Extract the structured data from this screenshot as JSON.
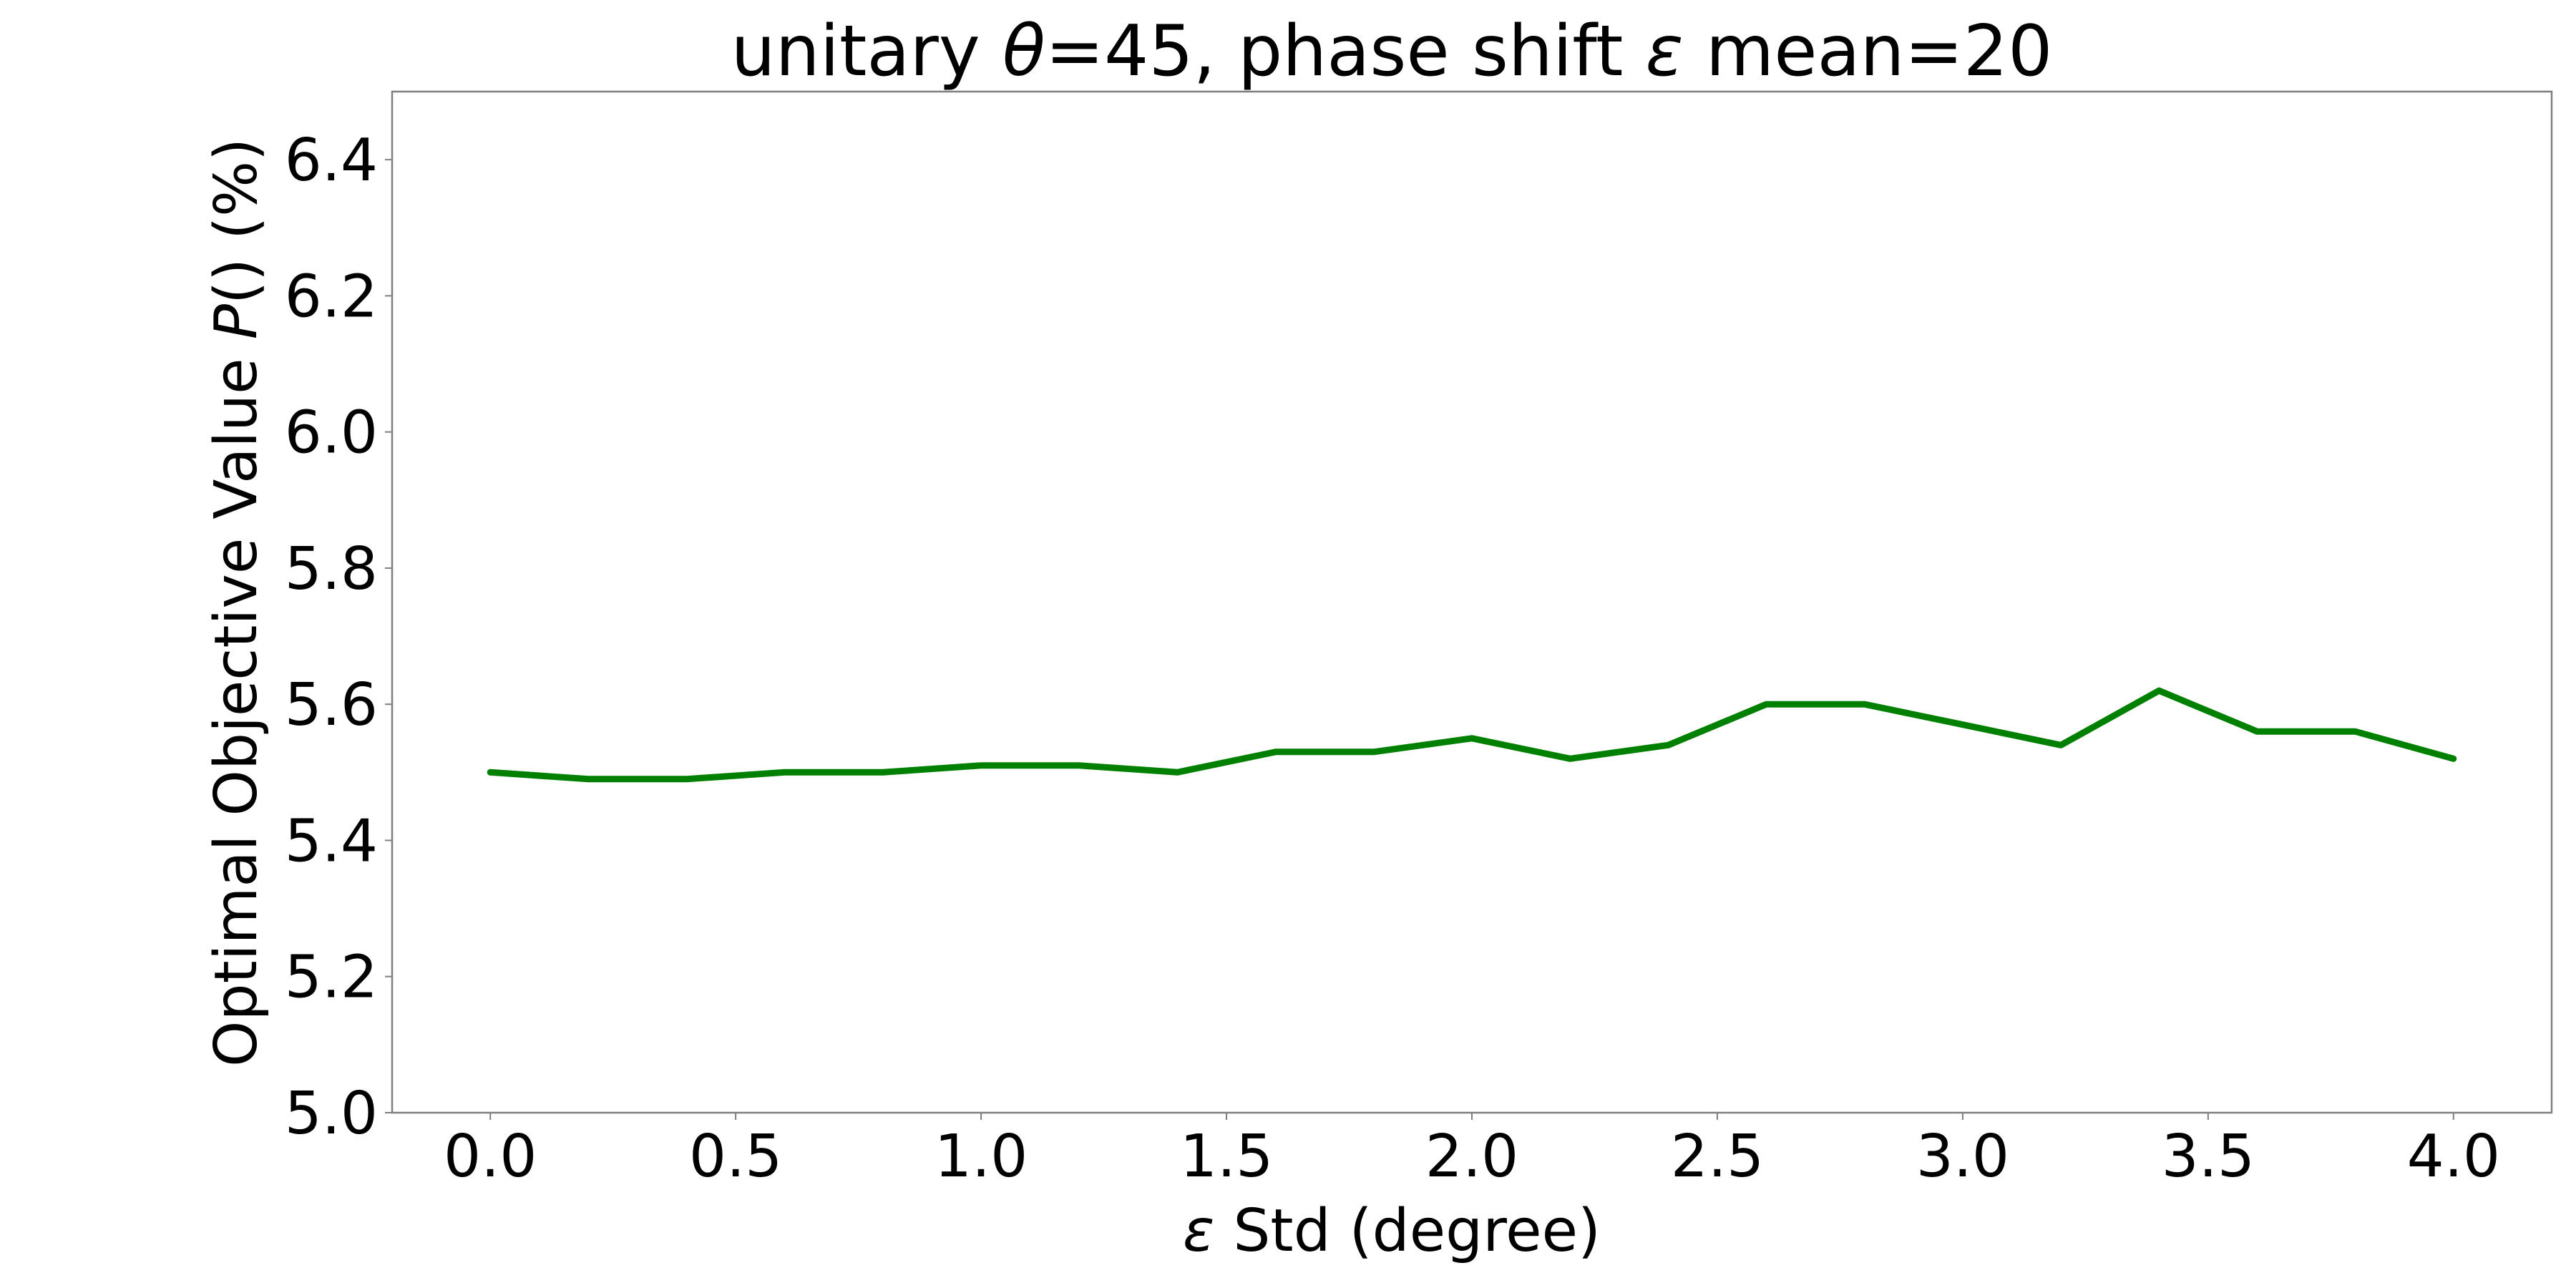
{
  "chart_data": {
    "type": "line",
    "title": "unitary θ=45, phase shift ε mean=20",
    "title_parts": {
      "prefix": "unitary ",
      "theta_symbol": "θ",
      "middle": "=45, phase shift ",
      "epsilon_symbol": "ε",
      "suffix": " mean=20"
    },
    "xlabel": "ε Std (degree)",
    "xlabel_parts": {
      "symbol": "ε",
      "text": " Std (degree)"
    },
    "ylabel": "Optimal Objective Value P() (%)",
    "ylabel_parts": {
      "prefix": "Optimal Objective Value ",
      "symbol": "P",
      "suffix": "()  (%)"
    },
    "xlim": [
      -0.2,
      4.2
    ],
    "ylim": [
      5.0,
      6.5
    ],
    "x_ticks": [
      "0.0",
      "0.5",
      "1.0",
      "1.5",
      "2.0",
      "2.5",
      "3.0",
      "3.5",
      "4.0"
    ],
    "x_tick_values": [
      0.0,
      0.5,
      1.0,
      1.5,
      2.0,
      2.5,
      3.0,
      3.5,
      4.0
    ],
    "y_ticks": [
      "5.0",
      "5.2",
      "5.4",
      "5.6",
      "5.8",
      "6.0",
      "6.2",
      "6.4"
    ],
    "y_tick_values": [
      5.0,
      5.2,
      5.4,
      5.6,
      5.8,
      6.0,
      6.2,
      6.4
    ],
    "grid": false,
    "series": [
      {
        "color": "#008000",
        "x": [
          0.0,
          0.2,
          0.4,
          0.6,
          0.8,
          1.0,
          1.2,
          1.4,
          1.6,
          1.8,
          2.0,
          2.2,
          2.4,
          2.6,
          2.8,
          3.0,
          3.2,
          3.4,
          3.6,
          3.8,
          4.0
        ],
        "values": [
          5.5,
          5.49,
          5.49,
          5.5,
          5.5,
          5.51,
          5.51,
          5.5,
          5.53,
          5.53,
          5.55,
          5.52,
          5.54,
          5.6,
          5.6,
          5.57,
          5.54,
          5.62,
          5.56,
          5.56,
          5.52
        ]
      }
    ]
  }
}
